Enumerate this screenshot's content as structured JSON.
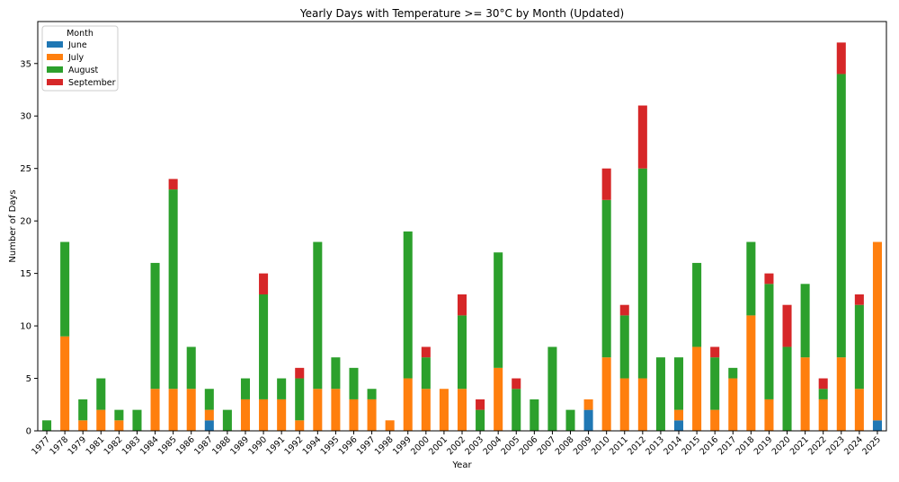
{
  "chart_data": {
    "type": "bar",
    "stacked": true,
    "title": "Yearly Days with Temperature >= 30°C by Month (Updated)",
    "xlabel": "Year",
    "ylabel": "Number of Days",
    "ylim": [
      0,
      39
    ],
    "yticks": [
      0,
      5,
      10,
      15,
      20,
      25,
      30,
      35
    ],
    "grid": false,
    "legend": {
      "title": "Month",
      "position": "top-left"
    },
    "categories": [
      "1977",
      "1978",
      "1979",
      "1981",
      "1982",
      "1983",
      "1984",
      "1985",
      "1986",
      "1987",
      "1988",
      "1989",
      "1990",
      "1991",
      "1992",
      "1994",
      "1995",
      "1996",
      "1997",
      "1998",
      "1999",
      "2000",
      "2001",
      "2002",
      "2003",
      "2004",
      "2005",
      "2006",
      "2007",
      "2008",
      "2009",
      "2010",
      "2011",
      "2012",
      "2013",
      "2014",
      "2015",
      "2016",
      "2017",
      "2018",
      "2019",
      "2020",
      "2021",
      "2022",
      "2023",
      "2024",
      "2025"
    ],
    "series": [
      {
        "name": "June",
        "color": "#1f77b4",
        "values": [
          0,
          0,
          0,
          0,
          0,
          0,
          0,
          0,
          0,
          1,
          0,
          0,
          0,
          0,
          0,
          0,
          0,
          0,
          0,
          0,
          0,
          0,
          0,
          0,
          0,
          0,
          0,
          0,
          0,
          0,
          2,
          0,
          0,
          0,
          0,
          1,
          0,
          0,
          0,
          0,
          0,
          0,
          0,
          0,
          0,
          0,
          1
        ]
      },
      {
        "name": "July",
        "color": "#ff7f0e",
        "values": [
          0,
          9,
          1,
          2,
          1,
          0,
          4,
          4,
          4,
          1,
          0,
          3,
          3,
          3,
          1,
          4,
          4,
          3,
          3,
          1,
          5,
          4,
          4,
          4,
          0,
          6,
          0,
          0,
          0,
          0,
          1,
          7,
          5,
          5,
          0,
          1,
          8,
          2,
          5,
          11,
          3,
          0,
          7,
          3,
          7,
          4,
          17
        ]
      },
      {
        "name": "August",
        "color": "#2ca02c",
        "values": [
          1,
          9,
          2,
          3,
          1,
          2,
          12,
          19,
          4,
          2,
          2,
          2,
          10,
          2,
          4,
          14,
          3,
          3,
          1,
          0,
          14,
          3,
          0,
          7,
          2,
          11,
          4,
          3,
          8,
          2,
          0,
          15,
          6,
          20,
          7,
          5,
          8,
          5,
          1,
          7,
          11,
          8,
          7,
          1,
          27,
          8,
          0
        ]
      },
      {
        "name": "September",
        "color": "#d62728",
        "values": [
          0,
          0,
          0,
          0,
          0,
          0,
          0,
          1,
          0,
          0,
          0,
          0,
          2,
          0,
          1,
          0,
          0,
          0,
          0,
          0,
          0,
          1,
          0,
          2,
          1,
          0,
          1,
          0,
          0,
          0,
          0,
          3,
          1,
          6,
          0,
          0,
          0,
          1,
          0,
          0,
          1,
          4,
          0,
          1,
          3,
          1,
          0
        ]
      }
    ]
  }
}
